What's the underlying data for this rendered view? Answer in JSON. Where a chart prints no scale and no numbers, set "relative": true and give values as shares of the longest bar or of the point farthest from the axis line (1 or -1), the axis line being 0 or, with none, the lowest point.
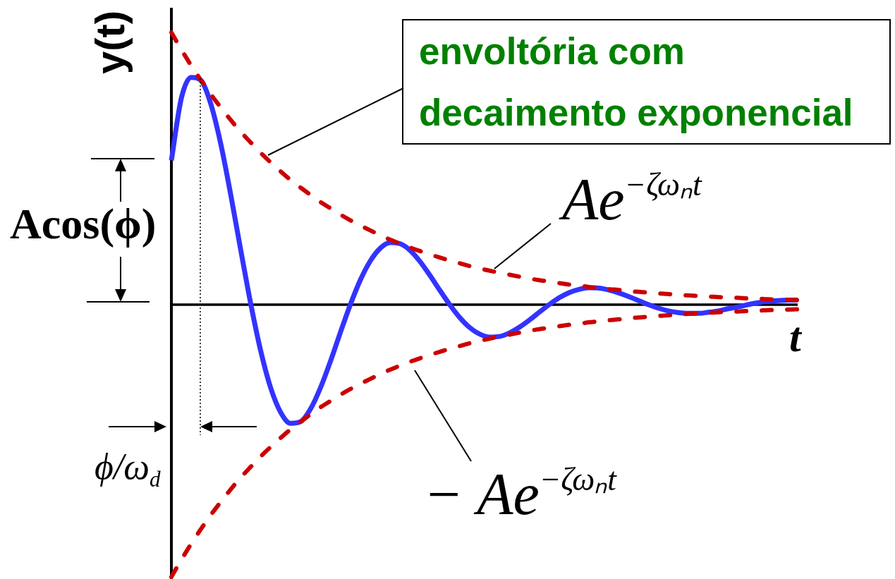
{
  "chart_data": {
    "type": "line",
    "relative": true,
    "tick_labels": false,
    "xlabel": "t",
    "ylabel": "y(t)",
    "categories": [
      null,
      null,
      null,
      null,
      null,
      null,
      null,
      null,
      null,
      null,
      null,
      null,
      null,
      null,
      null,
      null,
      null,
      null,
      null,
      null,
      null,
      null,
      null,
      null,
      null,
      null,
      null,
      null,
      null,
      null,
      null,
      null,
      null,
      null,
      null,
      null,
      null,
      null,
      null,
      null,
      null,
      null,
      null,
      null,
      null,
      null,
      null,
      null,
      null,
      null,
      null,
      null,
      null,
      null,
      null,
      null,
      null,
      null,
      null,
      null,
      null,
      null,
      null,
      null
    ],
    "series": [
      {
        "color": "#3333ff",
        "line_style": "solid",
        "values": [
          0.53,
          0.758,
          0.835,
          0.823,
          0.733,
          0.585,
          0.398,
          0.196,
          0,
          -0.172,
          -0.307,
          -0.396,
          -0.436,
          -0.43,
          -0.383,
          -0.305,
          -0.208,
          -0.102,
          0,
          0.09,
          0.16,
          0.207,
          0.228,
          0.224,
          0.2,
          0.159,
          0.108,
          0.053,
          0,
          -0.047,
          -0.084,
          -0.108,
          -0.119,
          -0.117,
          -0.104,
          -0.083,
          -0.057,
          -0.028,
          0,
          0.025,
          0.044,
          0.056,
          0.062,
          0.061,
          0.054,
          0.043,
          0.03,
          0.015,
          0,
          -0.013,
          -0.023,
          -0.029,
          -0.032,
          -0.032,
          -0.028,
          -0.023,
          -0.015,
          -0.008,
          0,
          0.007,
          0.012,
          0.015,
          0.017,
          0.017
        ]
      },
      {
        "name": "Ae$^{−ζωₙt}$",
        "color": "#cc0000",
        "line_style": "dashed",
        "values": [
          1.0,
          0.937,
          0.878,
          0.823,
          0.771,
          0.723,
          0.677,
          0.634,
          0.595,
          0.557,
          0.522,
          0.489,
          0.458,
          0.43,
          0.403,
          0.377,
          0.354,
          0.331,
          0.31,
          0.291,
          0.273,
          0.255,
          0.239,
          0.224,
          0.21,
          0.197,
          0.185,
          0.173,
          0.162,
          0.152,
          0.142,
          0.133,
          0.125,
          0.117,
          0.11,
          0.103,
          0.096,
          0.09,
          0.085,
          0.079,
          0.074,
          0.07,
          0.065,
          0.061,
          0.057,
          0.054,
          0.05,
          0.047,
          0.044,
          0.041,
          0.039,
          0.036,
          0.034,
          0.032,
          0.03,
          0.028,
          0.026,
          0.025,
          0.023,
          0.022,
          0.02,
          0.019,
          0.018,
          0.017
        ]
      },
      {
        "name": "− Ae$^{−ζωₙt}$",
        "color": "#cc0000",
        "line_style": "dashed",
        "values": [
          -1.0,
          -0.937,
          -0.878,
          -0.823,
          -0.771,
          -0.723,
          -0.677,
          -0.634,
          -0.595,
          -0.557,
          -0.522,
          -0.489,
          -0.458,
          -0.43,
          -0.403,
          -0.377,
          -0.354,
          -0.331,
          -0.31,
          -0.291,
          -0.273,
          -0.255,
          -0.239,
          -0.224,
          -0.21,
          -0.197,
          -0.185,
          -0.173,
          -0.162,
          -0.152,
          -0.142,
          -0.133,
          -0.125,
          -0.117,
          -0.11,
          -0.103,
          -0.096,
          -0.09,
          -0.085,
          -0.079,
          -0.074,
          -0.07,
          -0.065,
          -0.061,
          -0.057,
          -0.054,
          -0.05,
          -0.047,
          -0.044,
          -0.041,
          -0.039,
          -0.036,
          -0.034,
          -0.032,
          -0.03,
          -0.028,
          -0.026,
          -0.025,
          -0.023,
          -0.022,
          -0.02,
          -0.019,
          -0.018,
          -0.017
        ]
      }
    ],
    "annotations": [
      "envoltória com\ndecaimento exponencial",
      "Acos(ϕ)",
      "ϕ/ω$_{d}$"
    ]
  }
}
